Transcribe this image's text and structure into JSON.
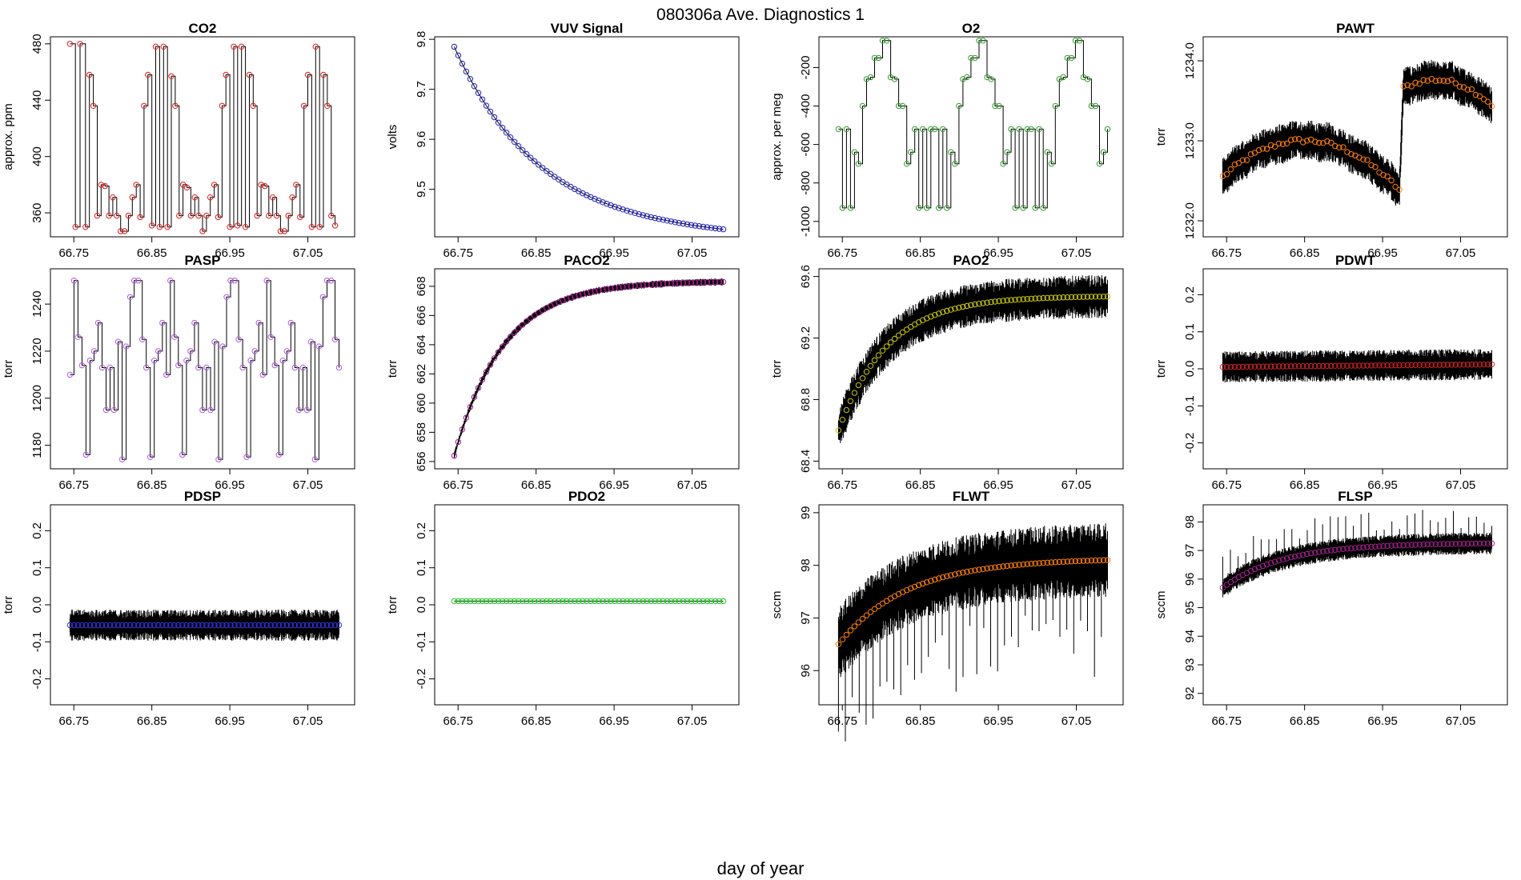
{
  "figure": {
    "title": "080306a   Ave. Diagnostics 1",
    "xlabel": "day of year"
  },
  "chart_data": [
    {
      "type": "line",
      "title": "CO2",
      "ylabel": "approx. ppm",
      "color": "#e41a1c",
      "xlim": [
        66.72,
        67.11
      ],
      "xticks": [
        "66.75",
        "66.85",
        "66.95",
        "67.05"
      ],
      "ylim": [
        343,
        485
      ],
      "yticks": [
        "360",
        "400",
        "440",
        "480"
      ],
      "x": [
        66.745,
        66.752,
        66.758,
        66.765,
        66.77,
        66.775,
        66.78,
        66.785,
        66.79,
        66.795,
        66.8,
        66.805,
        66.81,
        66.815,
        66.82,
        66.825,
        66.83,
        66.835,
        66.84,
        66.845,
        66.85,
        66.855,
        66.86,
        66.865,
        66.87,
        66.875,
        66.88,
        66.885,
        66.89,
        66.895,
        66.9,
        66.905,
        66.91,
        66.915,
        66.92,
        66.925,
        66.93,
        66.935,
        66.94,
        66.945,
        66.95,
        66.955,
        66.96,
        66.965,
        66.97,
        66.975,
        66.98,
        66.985,
        66.99,
        66.995,
        67.0,
        67.005,
        67.01,
        67.015,
        67.02,
        67.025,
        67.03,
        67.035,
        67.04,
        67.045,
        67.05,
        67.055,
        67.06,
        67.065,
        67.07,
        67.075,
        67.08,
        67.085
      ],
      "values": [
        480,
        350,
        480,
        350,
        458,
        436,
        358,
        380,
        379,
        358,
        371,
        358,
        347,
        347,
        358,
        371,
        380,
        357,
        436,
        458,
        351,
        478,
        350,
        478,
        350,
        457,
        436,
        358,
        380,
        378,
        358,
        371,
        358,
        347,
        358,
        371,
        380,
        357,
        436,
        458,
        350,
        478,
        351,
        478,
        350,
        458,
        436,
        358,
        380,
        379,
        358,
        371,
        358,
        347,
        347,
        358,
        371,
        380,
        357,
        436,
        458,
        350,
        478,
        350,
        458,
        436,
        358,
        351
      ],
      "trace": "step"
    },
    {
      "type": "line",
      "title": "VUV Signal",
      "ylabel": "volts",
      "color": "#1f1fbf",
      "xlim": [
        66.72,
        67.11
      ],
      "xticks": [
        "66.75",
        "66.85",
        "66.95",
        "67.05"
      ],
      "ylim": [
        9.405,
        9.805
      ],
      "yticks": [
        "9.5",
        "9.6",
        "9.7",
        "9.8"
      ],
      "x0": 66.745,
      "x1": 67.09,
      "n": 68,
      "curve": {
        "kind": "exp",
        "start": 9.785,
        "end": 9.42,
        "rate": 3.2
      },
      "trace": "smooth"
    },
    {
      "type": "line",
      "title": "O2",
      "ylabel": "approx. per meg",
      "color": "#33a02c",
      "xlim": [
        66.72,
        67.11
      ],
      "xticks": [
        "66.75",
        "66.85",
        "66.95",
        "67.05"
      ],
      "ylim": [
        -1080,
        -40
      ],
      "yticks": [
        "-1000",
        "-800",
        "-600",
        "-400",
        "-200"
      ],
      "pattern": [
        -520,
        -930,
        -520,
        -930,
        -640,
        -700,
        -400,
        -260,
        -250,
        -150,
        -150,
        -60,
        -60,
        -250,
        -260,
        -400,
        -400,
        -700,
        -640,
        -520,
        -930,
        -520,
        -930,
        -520
      ],
      "x0": 66.745,
      "x1": 67.09,
      "n": 68,
      "trace": "step"
    },
    {
      "type": "line",
      "title": "PAWT",
      "ylabel": "torr",
      "color": "#ff7f00",
      "xlim": [
        66.72,
        67.11
      ],
      "xticks": [
        "66.75",
        "66.85",
        "66.95",
        "67.05"
      ],
      "ylim": [
        1231.8,
        1234.3
      ],
      "yticks": [
        "1232.0",
        "1233.0",
        "1234.0"
      ],
      "x0": 66.745,
      "x1": 67.09,
      "n": 68,
      "segments": [
        {
          "from": 66.745,
          "to": 66.975,
          "start": 1232.55,
          "peak": 1233.0,
          "end": 1232.35
        },
        {
          "from": 66.975,
          "to": 67.09,
          "start": 1233.65,
          "peak": 1233.75,
          "end": 1233.45
        }
      ],
      "trace": "noisy",
      "noise": 0.35
    },
    {
      "type": "line",
      "title": "PASP",
      "ylabel": "torr",
      "color": "#b05be0",
      "xlim": [
        66.72,
        67.11
      ],
      "xticks": [
        "66.75",
        "66.85",
        "66.95",
        "67.05"
      ],
      "ylim": [
        1170,
        1255
      ],
      "yticks": [
        "1180",
        "1200",
        "1220",
        "1240"
      ],
      "pattern": [
        1210,
        1250,
        1226,
        1214,
        1176,
        1216,
        1220,
        1232,
        1213,
        1195,
        1213,
        1195,
        1224,
        1174,
        1222,
        1243,
        1250,
        1250,
        1225,
        1213,
        1175,
        1216,
        1220,
        1232
      ],
      "x0": 66.745,
      "x1": 67.09,
      "n": 68,
      "trace": "step"
    },
    {
      "type": "line",
      "title": "PACO2",
      "ylabel": "torr",
      "color": "#a0208a",
      "xlim": [
        66.72,
        67.11
      ],
      "xticks": [
        "66.75",
        "66.85",
        "66.95",
        "67.05"
      ],
      "ylim": [
        655.5,
        669.2
      ],
      "yticks": [
        "656",
        "658",
        "660",
        "662",
        "664",
        "666",
        "668"
      ],
      "x0": 66.745,
      "x1": 67.09,
      "n": 68,
      "curve": {
        "kind": "exp",
        "start": 656.4,
        "end": 668.3,
        "rate": 5.5
      },
      "trace": "noisy",
      "noise": 0.35
    },
    {
      "type": "line",
      "title": "PAO2",
      "ylabel": "torr",
      "color": "#c8c800",
      "xlim": [
        66.72,
        67.11
      ],
      "xticks": [
        "66.75",
        "66.85",
        "66.95",
        "67.05"
      ],
      "ylim": [
        68.35,
        69.65
      ],
      "yticks": [
        "68.4",
        "68.8",
        "69.2",
        "69.6"
      ],
      "x0": 66.745,
      "x1": 67.09,
      "n": 68,
      "curve": {
        "kind": "exp",
        "start": 68.6,
        "end": 69.47,
        "rate": 5.5
      },
      "trace": "noisy",
      "noise": 0.2
    },
    {
      "type": "line",
      "title": "PDWT",
      "ylabel": "torr",
      "color": "#cc2222",
      "xlim": [
        66.72,
        67.11
      ],
      "xticks": [
        "66.75",
        "66.85",
        "66.95",
        "67.05"
      ],
      "ylim": [
        -0.27,
        0.27
      ],
      "yticks": [
        "-0.2",
        "-0.1",
        "0.0",
        "0.1",
        "0.2"
      ],
      "x0": 66.745,
      "x1": 67.09,
      "n": 68,
      "curve": {
        "kind": "flat",
        "start": 0.005,
        "end": 0.012
      },
      "trace": "noisy",
      "noise": 0.06
    },
    {
      "type": "line",
      "title": "PDSP",
      "ylabel": "torr",
      "color": "#3333dd",
      "xlim": [
        66.72,
        67.11
      ],
      "xticks": [
        "66.75",
        "66.85",
        "66.95",
        "67.05"
      ],
      "ylim": [
        -0.27,
        0.27
      ],
      "yticks": [
        "-0.2",
        "-0.1",
        "0.0",
        "0.1",
        "0.2"
      ],
      "x0": 66.745,
      "x1": 67.09,
      "n": 68,
      "curve": {
        "kind": "flat",
        "start": -0.055,
        "end": -0.055
      },
      "trace": "noisy",
      "noise": 0.06
    },
    {
      "type": "line",
      "title": "PDO2",
      "ylabel": "torr",
      "color": "#22cc22",
      "xlim": [
        66.72,
        67.11
      ],
      "xticks": [
        "66.75",
        "66.85",
        "66.95",
        "67.05"
      ],
      "ylim": [
        -0.27,
        0.27
      ],
      "yticks": [
        "-0.2",
        "-0.1",
        "0.0",
        "0.1",
        "0.2"
      ],
      "x0": 66.745,
      "x1": 67.09,
      "n": 68,
      "curve": {
        "kind": "flat",
        "start": 0.01,
        "end": 0.01
      },
      "trace": "smooth"
    },
    {
      "type": "line",
      "title": "FLWT",
      "ylabel": "sccm",
      "color": "#ff7f00",
      "xlim": [
        66.72,
        67.11
      ],
      "xticks": [
        "66.75",
        "66.85",
        "66.95",
        "67.05"
      ],
      "ylim": [
        95.35,
        99.15
      ],
      "yticks": [
        "96",
        "97",
        "98",
        "99"
      ],
      "x0": 66.745,
      "x1": 67.09,
      "n": 68,
      "curve": {
        "kind": "exp",
        "start": 96.5,
        "end": 98.1,
        "rate": 4.0
      },
      "trace": "noisy",
      "noise": 1.0,
      "spikes": "down"
    },
    {
      "type": "line",
      "title": "FLSP",
      "ylabel": "sccm",
      "color": "#a0208a",
      "xlim": [
        66.72,
        67.11
      ],
      "xticks": [
        "66.75",
        "66.85",
        "66.95",
        "67.05"
      ],
      "ylim": [
        91.6,
        98.6
      ],
      "yticks": [
        "92",
        "93",
        "94",
        "95",
        "96",
        "97",
        "98"
      ],
      "x0": 66.745,
      "x1": 67.09,
      "n": 68,
      "curve": {
        "kind": "exp",
        "start": 95.7,
        "end": 97.25,
        "rate": 4.5
      },
      "trace": "noisy",
      "noise": 0.55,
      "spikes": "up"
    }
  ]
}
